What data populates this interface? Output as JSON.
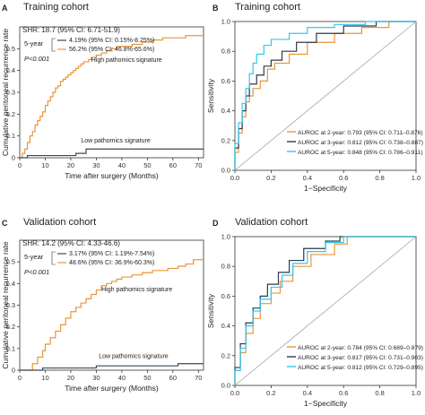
{
  "chart_data": [
    {
      "panel": "A",
      "type": "line",
      "title": "Training cohort",
      "xlabel": "Time after surgery (Months)",
      "ylabel": "Cumulative peritoneal recurrence rate",
      "xlim": [
        0,
        72
      ],
      "ylim": [
        0,
        0.6
      ],
      "xticks": [
        0,
        10,
        20,
        30,
        40,
        50,
        60,
        70
      ],
      "yticks": [
        0,
        0.1,
        0.2,
        0.3,
        0.4,
        0.5
      ],
      "stats": {
        "shr": "SHR: 18.7 (95% CI: 6.71-51.9)",
        "label_5year": "5-year",
        "row1": "4.19% (95% CI: 0.15%-8.25%)",
        "row2": "56.2% (95% CI: 46.8%-65.6%)",
        "p": "P<0.001"
      },
      "series": [
        {
          "name": "High pathomics signature",
          "color": "#E8963A",
          "x": [
            0,
            1,
            2,
            3,
            4,
            5,
            6,
            7,
            8,
            9,
            10,
            11,
            12,
            13,
            14,
            15,
            16,
            17,
            18,
            19,
            20,
            21,
            22,
            23,
            24,
            25,
            26,
            27,
            28,
            29,
            30,
            32,
            34,
            36,
            38,
            40,
            44,
            48,
            52,
            56,
            60,
            65,
            72
          ],
          "y": [
            0,
            0.02,
            0.04,
            0.07,
            0.1,
            0.12,
            0.15,
            0.17,
            0.19,
            0.21,
            0.24,
            0.26,
            0.28,
            0.3,
            0.32,
            0.33,
            0.35,
            0.36,
            0.37,
            0.38,
            0.39,
            0.4,
            0.41,
            0.42,
            0.43,
            0.44,
            0.44,
            0.45,
            0.46,
            0.46,
            0.47,
            0.48,
            0.49,
            0.5,
            0.51,
            0.51,
            0.52,
            0.53,
            0.54,
            0.55,
            0.55,
            0.56,
            0.56
          ]
        },
        {
          "name": "Low pathomics signature",
          "color": "#3A4A5A",
          "x": [
            0,
            3,
            16,
            22,
            26,
            72
          ],
          "y": [
            0,
            0.01,
            0.01,
            0.02,
            0.04,
            0.04
          ]
        }
      ]
    },
    {
      "panel": "B",
      "type": "line",
      "title": "Training cohort",
      "xlabel": "1−Specificity",
      "ylabel": "Sensitivity",
      "xlim": [
        0,
        1
      ],
      "ylim": [
        0,
        1
      ],
      "xticks": [
        0.0,
        0.2,
        0.4,
        0.6,
        0.8,
        1.0
      ],
      "yticks": [
        0.0,
        0.2,
        0.4,
        0.6,
        0.8,
        1.0
      ],
      "series": [
        {
          "name": "AUROC at 2-year: 0.793 (95% CI: 0.711–0.876)",
          "color": "#E8963A",
          "x": [
            0,
            0,
            0.02,
            0.02,
            0.04,
            0.04,
            0.06,
            0.06,
            0.08,
            0.08,
            0.1,
            0.1,
            0.14,
            0.14,
            0.18,
            0.18,
            0.22,
            0.22,
            0.3,
            0.3,
            0.4,
            0.4,
            0.55,
            0.55,
            0.7,
            0.7,
            0.85,
            0.85,
            1.0
          ],
          "y": [
            0,
            0.12,
            0.12,
            0.25,
            0.25,
            0.36,
            0.36,
            0.46,
            0.46,
            0.5,
            0.5,
            0.55,
            0.55,
            0.6,
            0.6,
            0.68,
            0.68,
            0.72,
            0.72,
            0.78,
            0.78,
            0.86,
            0.86,
            0.92,
            0.92,
            0.96,
            0.96,
            1.0,
            1.0
          ]
        },
        {
          "name": "AUROC at 3-year: 0.812 (95% CI: 0.738–0.887)",
          "color": "#2B3A48",
          "x": [
            0,
            0,
            0.02,
            0.02,
            0.04,
            0.04,
            0.06,
            0.06,
            0.08,
            0.08,
            0.12,
            0.12,
            0.16,
            0.16,
            0.2,
            0.2,
            0.26,
            0.26,
            0.34,
            0.34,
            0.45,
            0.45,
            0.6,
            0.6,
            0.78,
            0.78,
            1.0
          ],
          "y": [
            0,
            0.15,
            0.15,
            0.28,
            0.28,
            0.4,
            0.4,
            0.5,
            0.5,
            0.58,
            0.58,
            0.64,
            0.64,
            0.7,
            0.7,
            0.74,
            0.74,
            0.8,
            0.8,
            0.86,
            0.86,
            0.92,
            0.92,
            0.97,
            0.97,
            1.0,
            1.0
          ]
        },
        {
          "name": "AUROC at 5-year: 0.848 (95% CI: 0.786–0.911)",
          "color": "#33C6F0",
          "x": [
            0,
            0,
            0.02,
            0.02,
            0.04,
            0.04,
            0.06,
            0.06,
            0.08,
            0.08,
            0.1,
            0.1,
            0.12,
            0.12,
            0.16,
            0.16,
            0.2,
            0.2,
            0.3,
            0.3,
            0.4,
            0.4,
            0.55,
            0.55,
            0.72,
            0.72,
            1.0
          ],
          "y": [
            0,
            0.18,
            0.18,
            0.32,
            0.32,
            0.45,
            0.45,
            0.55,
            0.55,
            0.65,
            0.65,
            0.72,
            0.72,
            0.78,
            0.78,
            0.84,
            0.84,
            0.88,
            0.88,
            0.92,
            0.92,
            0.96,
            0.96,
            0.98,
            0.98,
            1.0,
            1.0
          ]
        },
        {
          "name": "",
          "color": "#9AA4AE",
          "role": "reference",
          "x": [
            0,
            1
          ],
          "y": [
            0,
            1
          ]
        }
      ]
    },
    {
      "panel": "C",
      "type": "line",
      "title": "Validation cohort",
      "xlabel": "Time after surgery (Months)",
      "ylabel": "Cumulative peritoneal recurrence rate",
      "xlim": [
        0,
        72
      ],
      "ylim": [
        0,
        0.6
      ],
      "xticks": [
        0,
        10,
        20,
        30,
        40,
        50,
        60,
        70
      ],
      "yticks": [
        0,
        0.1,
        0.2,
        0.3,
        0.4,
        0.5
      ],
      "stats": {
        "shr": "SHR: 14.2 (95% CI: 4.33-46.6)",
        "label_5year": "5-year",
        "row1": "3.17% (95% CI: 1.19%-7.54%)",
        "row2": "48.6% (95% CI: 36.9%-60.3%)",
        "p": "P<0.001"
      },
      "series": [
        {
          "name": "High pathomics signature",
          "color": "#E8963A",
          "x": [
            0,
            5,
            7,
            9,
            10,
            12,
            14,
            16,
            18,
            20,
            22,
            24,
            26,
            28,
            30,
            32,
            34,
            36,
            38,
            40,
            44,
            48,
            52,
            58,
            62,
            65,
            68,
            72
          ],
          "y": [
            0,
            0.03,
            0.06,
            0.09,
            0.12,
            0.15,
            0.18,
            0.21,
            0.24,
            0.27,
            0.29,
            0.31,
            0.33,
            0.35,
            0.37,
            0.39,
            0.4,
            0.41,
            0.42,
            0.43,
            0.44,
            0.45,
            0.46,
            0.47,
            0.48,
            0.49,
            0.51,
            0.51
          ]
        },
        {
          "name": "Low pathomics signature",
          "color": "#3A4A5A",
          "x": [
            0,
            9,
            30,
            62,
            72
          ],
          "y": [
            0,
            0.01,
            0.02,
            0.03,
            0.03
          ]
        }
      ]
    },
    {
      "panel": "D",
      "type": "line",
      "title": "Validation cohort",
      "xlabel": "1−Specificity",
      "ylabel": "Sensitivity",
      "xlim": [
        0,
        1
      ],
      "ylim": [
        0,
        1
      ],
      "xticks": [
        0.0,
        0.2,
        0.4,
        0.6,
        0.8,
        1.0
      ],
      "yticks": [
        0.0,
        0.2,
        0.4,
        0.6,
        0.8,
        1.0
      ],
      "series": [
        {
          "name": "AUROC at 2-year: 0.784 (95% CI: 0.689–0.879)",
          "color": "#E8963A",
          "x": [
            0,
            0,
            0.03,
            0.03,
            0.06,
            0.06,
            0.1,
            0.1,
            0.14,
            0.14,
            0.2,
            0.2,
            0.25,
            0.25,
            0.32,
            0.32,
            0.42,
            0.42,
            0.55,
            0.55,
            0.62,
            0.62,
            1.0
          ],
          "y": [
            0,
            0.1,
            0.1,
            0.22,
            0.22,
            0.35,
            0.35,
            0.45,
            0.45,
            0.55,
            0.55,
            0.62,
            0.62,
            0.7,
            0.7,
            0.8,
            0.8,
            0.88,
            0.88,
            0.95,
            0.95,
            1.0,
            1.0
          ]
        },
        {
          "name": "AUROC at 3-year: 0.817 (95% CI: 0.731–0.903)",
          "color": "#2B3A48",
          "x": [
            0,
            0,
            0.03,
            0.03,
            0.06,
            0.06,
            0.1,
            0.1,
            0.14,
            0.14,
            0.18,
            0.18,
            0.24,
            0.24,
            0.3,
            0.3,
            0.38,
            0.38,
            0.5,
            0.5,
            0.58,
            0.58,
            1.0
          ],
          "y": [
            0,
            0.12,
            0.12,
            0.28,
            0.28,
            0.42,
            0.42,
            0.52,
            0.52,
            0.6,
            0.6,
            0.68,
            0.68,
            0.76,
            0.76,
            0.84,
            0.84,
            0.92,
            0.92,
            0.97,
            0.97,
            1.0,
            1.0
          ]
        },
        {
          "name": "AUROC at 5-year: 0.812 (95% CI: 0.729–0.895)",
          "color": "#33C6F0",
          "x": [
            0,
            0,
            0.03,
            0.03,
            0.06,
            0.06,
            0.1,
            0.1,
            0.14,
            0.14,
            0.2,
            0.2,
            0.26,
            0.26,
            0.32,
            0.32,
            0.4,
            0.4,
            0.5,
            0.5,
            0.6,
            0.6,
            1.0
          ],
          "y": [
            0,
            0.1,
            0.1,
            0.25,
            0.25,
            0.4,
            0.4,
            0.5,
            0.5,
            0.58,
            0.58,
            0.66,
            0.66,
            0.74,
            0.74,
            0.82,
            0.82,
            0.9,
            0.9,
            0.96,
            0.96,
            1.0,
            1.0
          ]
        },
        {
          "name": "",
          "color": "#9AA4AE",
          "role": "reference",
          "x": [
            0,
            1
          ],
          "y": [
            0,
            1
          ]
        }
      ]
    }
  ]
}
